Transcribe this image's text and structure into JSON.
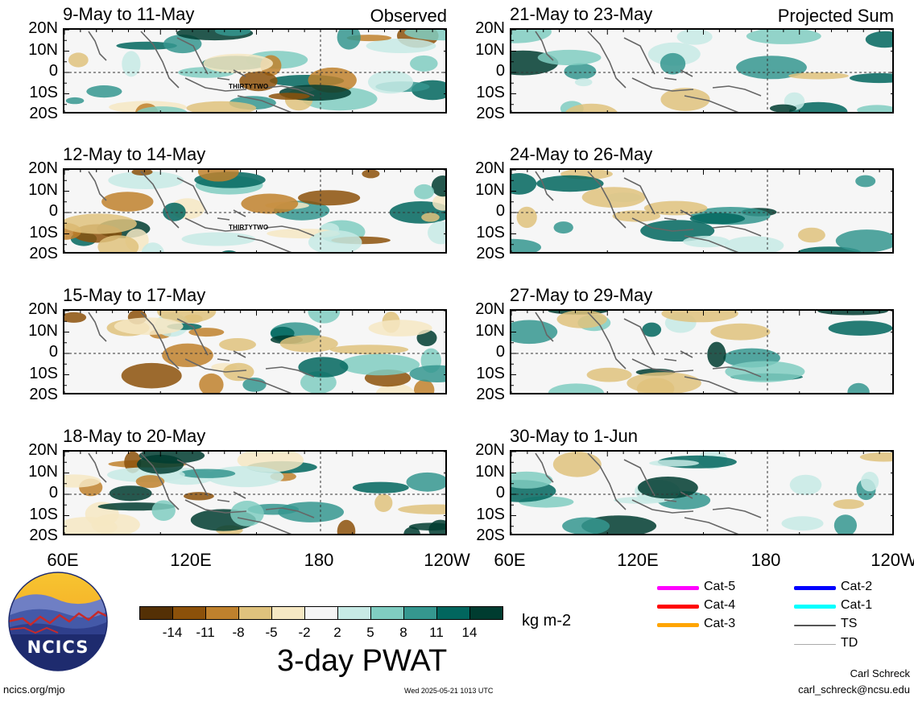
{
  "panels": [
    {
      "title": "9-May to 11-May",
      "tag": "Observed",
      "storm": "THIRTYTWO"
    },
    {
      "title": "21-May to 23-May",
      "tag": "Projected Sum",
      "storm": ""
    },
    {
      "title": "12-May to 14-May",
      "tag": "",
      "storm": "THIRTYTWO"
    },
    {
      "title": "24-May to 26-May",
      "tag": "",
      "storm": ""
    },
    {
      "title": "15-May to 17-May",
      "tag": "",
      "storm": ""
    },
    {
      "title": "27-May to 29-May",
      "tag": "",
      "storm": ""
    },
    {
      "title": "18-May to 20-May",
      "tag": "",
      "storm": ""
    },
    {
      "title": "30-May to 1-Jun",
      "tag": "",
      "storm": ""
    }
  ],
  "lat_labels": [
    "20N",
    "10N",
    "0",
    "10S",
    "20S"
  ],
  "lon_labels": [
    "60E",
    "120E",
    "180",
    "120W"
  ],
  "colorbar": {
    "colors": [
      "#543005",
      "#8c510a",
      "#bf812d",
      "#dfc27d",
      "#f6e8c3",
      "#f5f5f5",
      "#c7eae5",
      "#80cdc1",
      "#35978f",
      "#01665e",
      "#003c30"
    ],
    "ticks": [
      "-14",
      "-11",
      "-8",
      "-5",
      "-2",
      "2",
      "5",
      "8",
      "11",
      "14"
    ],
    "units": "kg m-2",
    "title": "3-day PWAT"
  },
  "track_legend": [
    {
      "label": "Cat-5",
      "color": "#ff00ff"
    },
    {
      "label": "Cat-2",
      "color": "#0000ff"
    },
    {
      "label": "Cat-4",
      "color": "#ff0000"
    },
    {
      "label": "Cat-1",
      "color": "#00ffff"
    },
    {
      "label": "Cat-3",
      "color": "#ffa500"
    },
    {
      "label": "TS",
      "color": "#555555"
    },
    {
      "label": "TD",
      "color": "#aaaaaa"
    }
  ],
  "logo_text": "NCICS",
  "footer": {
    "url": "ncics.org/mjo",
    "timestamp": "Wed 2025-05-21 1013 UTC",
    "author": "Carl Schreck",
    "email": "carl_schreck@ncsu.edu"
  }
}
